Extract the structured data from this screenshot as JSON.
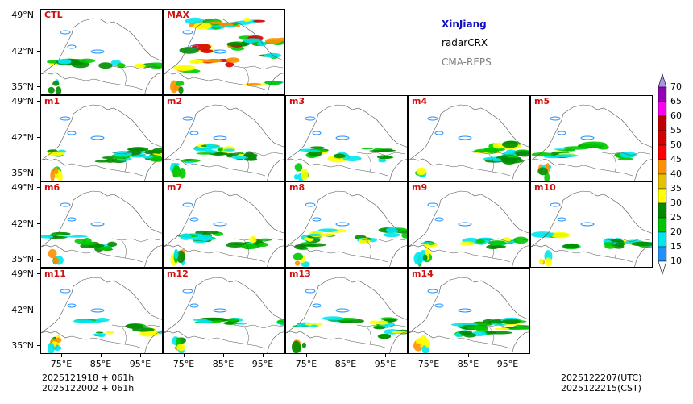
{
  "info": {
    "region": "XinJiang",
    "product": "radarCRX",
    "model": "CMA-REPS",
    "region_color": "#1010c0",
    "model_color": "#808080"
  },
  "panels": [
    "CTL",
    "MAX",
    "m1",
    "m2",
    "m3",
    "m4",
    "m5",
    "m6",
    "m7",
    "m8",
    "m9",
    "m10",
    "m11",
    "m12",
    "m13",
    "m14"
  ],
  "lat_labels": [
    "49°N",
    "42°N",
    "35°N"
  ],
  "lon_labels": [
    "75°E",
    "85°E",
    "95°E"
  ],
  "colorbar": {
    "levels": [
      "10",
      "15",
      "20",
      "25",
      "30",
      "35",
      "40",
      "45",
      "50",
      "55",
      "60",
      "65",
      "70"
    ],
    "colors": [
      "#1e90ff",
      "#00e5ee",
      "#00c800",
      "#008c00",
      "#ffff00",
      "#e7c000",
      "#ff9000",
      "#ff0000",
      "#d60000",
      "#c00000",
      "#ff00f0",
      "#9600b4",
      "#ad90f0"
    ]
  },
  "footer": {
    "init1": "2025121918  +  061h",
    "init2": "2025122002  +  061h",
    "valid_utc": "2025122207(UTC)",
    "valid_cst": "2025122215(CST)"
  }
}
